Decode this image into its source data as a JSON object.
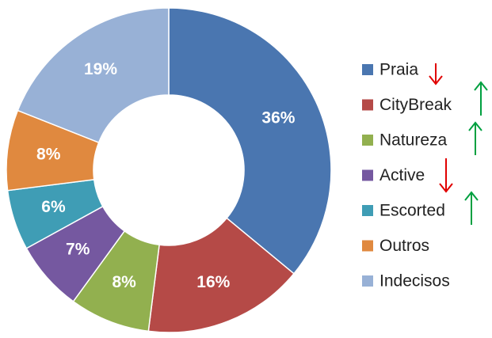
{
  "chart_data": {
    "type": "donut",
    "categories": [
      "Praia",
      "CityBreak",
      "Natureza",
      "Active",
      "Escorted",
      "Outros",
      "Indecisos"
    ],
    "values": [
      36,
      16,
      8,
      7,
      6,
      8,
      19
    ],
    "value_labels": [
      "36%",
      "16%",
      "8%",
      "7%",
      "6%",
      "8%",
      "19%"
    ],
    "colors": [
      "#4a76b0",
      "#b54a47",
      "#92b04f",
      "#7558a0",
      "#3f9db5",
      "#e0893f",
      "#98b1d6"
    ],
    "legend": "right"
  }
}
